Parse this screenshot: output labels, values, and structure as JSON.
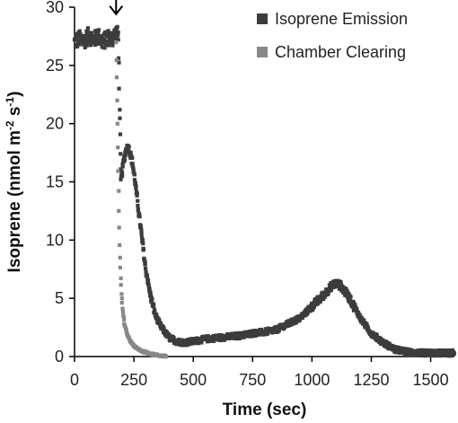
{
  "chart_data": {
    "type": "scatter",
    "xlabel": "Time (sec)",
    "ylabel_main": "Isoprene (nmol m",
    "ylabel_sup1": "-2",
    "ylabel_mid": " s",
    "ylabel_sup2": "-1",
    "ylabel_end": ")",
    "xlim": [
      0,
      1600
    ],
    "ylim": [
      0,
      30
    ],
    "x_ticks": [
      0,
      250,
      500,
      750,
      1000,
      1250,
      1500
    ],
    "y_ticks": [
      0,
      5,
      10,
      15,
      20,
      25,
      30
    ],
    "grid": false,
    "legend_position": "top-right",
    "annotation": {
      "type": "arrow-down",
      "x": 175,
      "y_top": 31.5,
      "y_bottom": 29.4
    },
    "series": [
      {
        "name": "Isoprene Emission",
        "color": "#3c3c3c",
        "marker": "square",
        "points": [
          [
            0,
            27.0
          ],
          [
            20,
            27.3
          ],
          [
            40,
            27.1
          ],
          [
            60,
            27.6
          ],
          [
            80,
            27.2
          ],
          [
            100,
            27.5
          ],
          [
            120,
            27.0
          ],
          [
            140,
            27.4
          ],
          [
            160,
            27.3
          ],
          [
            175,
            27.8
          ],
          [
            185,
            27.5
          ],
          [
            195,
            15.0
          ],
          [
            205,
            16.5
          ],
          [
            215,
            17.6
          ],
          [
            225,
            18.0
          ],
          [
            235,
            17.5
          ],
          [
            245,
            16.5
          ],
          [
            255,
            15.0
          ],
          [
            270,
            12.5
          ],
          [
            285,
            10.0
          ],
          [
            300,
            7.5
          ],
          [
            320,
            5.2
          ],
          [
            340,
            3.6
          ],
          [
            360,
            2.7
          ],
          [
            380,
            2.1
          ],
          [
            400,
            1.6
          ],
          [
            430,
            1.3
          ],
          [
            460,
            1.2
          ],
          [
            500,
            1.3
          ],
          [
            550,
            1.5
          ],
          [
            600,
            1.6
          ],
          [
            650,
            1.7
          ],
          [
            700,
            1.8
          ],
          [
            750,
            2.0
          ],
          [
            800,
            2.1
          ],
          [
            850,
            2.3
          ],
          [
            900,
            2.8
          ],
          [
            950,
            3.3
          ],
          [
            1000,
            4.3
          ],
          [
            1050,
            5.3
          ],
          [
            1080,
            6.0
          ],
          [
            1100,
            6.3
          ],
          [
            1120,
            6.1
          ],
          [
            1150,
            5.3
          ],
          [
            1180,
            4.2
          ],
          [
            1210,
            3.1
          ],
          [
            1250,
            2.0
          ],
          [
            1300,
            1.2
          ],
          [
            1350,
            0.6
          ],
          [
            1400,
            0.4
          ],
          [
            1450,
            0.3
          ],
          [
            1500,
            0.3
          ],
          [
            1550,
            0.3
          ],
          [
            1600,
            0.3
          ]
        ]
      },
      {
        "name": "Chamber Clearing",
        "color": "#888888",
        "marker": "square",
        "points": [
          [
            175,
            27.0
          ],
          [
            178,
            24.0
          ],
          [
            181,
            20.0
          ],
          [
            184,
            16.0
          ],
          [
            187,
            12.5
          ],
          [
            190,
            9.5
          ],
          [
            194,
            7.0
          ],
          [
            198,
            5.2
          ],
          [
            203,
            3.9
          ],
          [
            210,
            2.8
          ],
          [
            220,
            2.0
          ],
          [
            235,
            1.3
          ],
          [
            255,
            0.8
          ],
          [
            280,
            0.5
          ],
          [
            310,
            0.3
          ],
          [
            340,
            0.15
          ],
          [
            370,
            0.05
          ],
          [
            385,
            0.02
          ]
        ]
      }
    ]
  }
}
